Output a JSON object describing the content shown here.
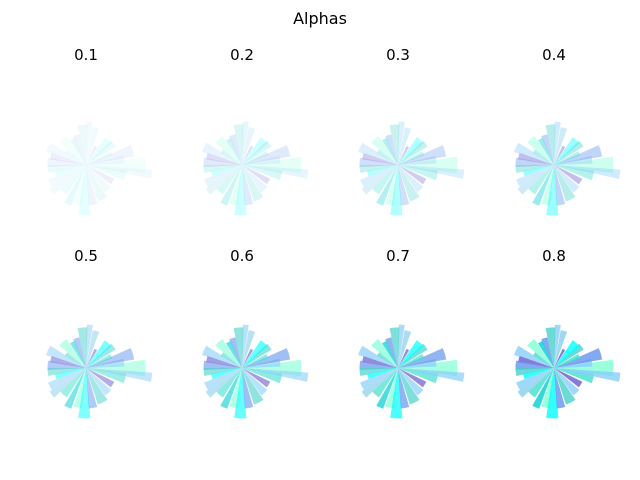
{
  "figure": {
    "title": "Alphas"
  },
  "chart_data": {
    "type": "polar-bar",
    "title": "Alphas",
    "grid": false,
    "axes_visible": false,
    "rlim": [
      0,
      1
    ],
    "colors": [
      "#87cefa",
      "#7fffd4",
      "#6495ed",
      "#40e0d0",
      "#48d1cc",
      "#00ffff",
      "#6a5acd",
      "#87ceeb",
      "#00ced1"
    ],
    "subplots": [
      {
        "title": "0.1",
        "alpha": 0.1
      },
      {
        "title": "0.2",
        "alpha": 0.2
      },
      {
        "title": "0.3",
        "alpha": 0.3
      },
      {
        "title": "0.4",
        "alpha": 0.4
      },
      {
        "title": "0.5",
        "alpha": 0.5
      },
      {
        "title": "0.6",
        "alpha": 0.6
      },
      {
        "title": "0.7",
        "alpha": 0.7
      },
      {
        "title": "0.8",
        "alpha": 0.8
      }
    ],
    "bars": [
      {
        "theta": 0,
        "width": 16,
        "r": 0.85,
        "c": 1
      },
      {
        "theta": 8,
        "width": 12,
        "r": 0.55,
        "c": 0
      },
      {
        "theta": 17,
        "width": 14,
        "r": 0.7,
        "c": 2
      },
      {
        "theta": 25,
        "width": 10,
        "r": 0.4,
        "c": 3
      },
      {
        "theta": 38,
        "width": 12,
        "r": 0.5,
        "c": 4
      },
      {
        "theta": 48,
        "width": 16,
        "r": 0.48,
        "c": 5
      },
      {
        "theta": 62,
        "width": 8,
        "r": 0.3,
        "c": 6
      },
      {
        "theta": 75,
        "width": 10,
        "r": 0.55,
        "c": 7
      },
      {
        "theta": 85,
        "width": 8,
        "r": 0.62,
        "c": 0
      },
      {
        "theta": 95,
        "width": 14,
        "r": 0.58,
        "c": 4
      },
      {
        "theta": 108,
        "width": 12,
        "r": 0.45,
        "c": 2
      },
      {
        "theta": 118,
        "width": 10,
        "r": 0.42,
        "c": 8
      },
      {
        "theta": 132,
        "width": 16,
        "r": 0.5,
        "c": 1
      },
      {
        "theta": 145,
        "width": 10,
        "r": 0.35,
        "c": 3
      },
      {
        "theta": 155,
        "width": 14,
        "r": 0.6,
        "c": 0
      },
      {
        "theta": 166,
        "width": 10,
        "r": 0.52,
        "c": 6
      },
      {
        "theta": 176,
        "width": 14,
        "r": 0.55,
        "c": 2
      },
      {
        "theta": 186,
        "width": 12,
        "r": 0.55,
        "c": 4
      },
      {
        "theta": 196,
        "width": 10,
        "r": 0.45,
        "c": 5
      },
      {
        "theta": 207,
        "width": 12,
        "r": 0.58,
        "c": 0
      },
      {
        "theta": 218,
        "width": 10,
        "r": 0.62,
        "c": 7
      },
      {
        "theta": 230,
        "width": 14,
        "r": 0.5,
        "c": 3
      },
      {
        "theta": 245,
        "width": 10,
        "r": 0.62,
        "c": 8
      },
      {
        "theta": 258,
        "width": 12,
        "r": 0.58,
        "c": 1
      },
      {
        "theta": 268,
        "width": 14,
        "r": 0.72,
        "c": 5
      },
      {
        "theta": 280,
        "width": 12,
        "r": 0.58,
        "c": 2
      },
      {
        "theta": 296,
        "width": 16,
        "r": 0.55,
        "c": 4
      },
      {
        "theta": 312,
        "width": 14,
        "r": 0.48,
        "c": 0
      },
      {
        "theta": 328,
        "width": 12,
        "r": 0.45,
        "c": 6
      },
      {
        "theta": 345,
        "width": 14,
        "r": 0.58,
        "c": 3
      },
      {
        "theta": 352,
        "width": 8,
        "r": 0.95,
        "c": 0
      }
    ]
  }
}
